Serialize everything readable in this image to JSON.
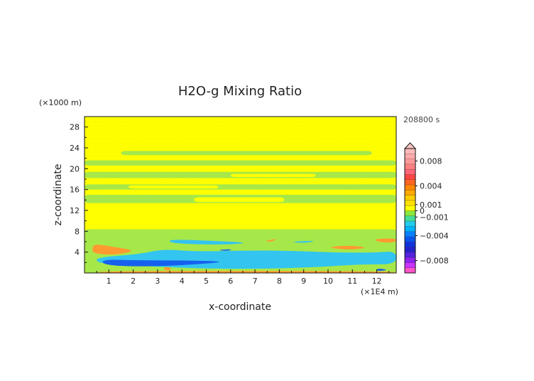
{
  "chart_data": {
    "type": "heatmap",
    "title": "H2O-g Mixing Ratio",
    "xlabel": "x-coordinate",
    "ylabel": "z-coordinate",
    "x_unit": "(×1E4 m)",
    "y_unit": "(×1000 m)",
    "time_label": "208800 s",
    "xlim": [
      0,
      12.8
    ],
    "ylim": [
      0,
      30
    ],
    "x_ticks": [
      1,
      2,
      3,
      4,
      5,
      6,
      7,
      8,
      9,
      10,
      11,
      12
    ],
    "y_ticks": [
      4,
      8,
      12,
      16,
      20,
      24,
      28
    ],
    "colorbar": {
      "range": [
        -0.01,
        0.01
      ],
      "ticks": [
        {
          "value": 0.008,
          "label": "0.008"
        },
        {
          "value": 0.004,
          "label": "0.004"
        },
        {
          "value": 0.001,
          "label": "0.001"
        },
        {
          "value": 0,
          "label": "0"
        },
        {
          "value": -0.001,
          "label": "−0.001"
        },
        {
          "value": -0.004,
          "label": "−0.004"
        },
        {
          "value": -0.008,
          "label": "−0.008"
        }
      ],
      "colors": [
        "#ff55c8",
        "#cc33ff",
        "#8f22ee",
        "#5522dd",
        "#2222cc",
        "#1133dd",
        "#0a55ee",
        "#0a80ff",
        "#00b4ff",
        "#22ccee",
        "#44dd99",
        "#88e840",
        "#ffff00",
        "#ffe000",
        "#ffcc00",
        "#ffaa00",
        "#ff8800",
        "#ff6622",
        "#ff4444",
        "#ff6677",
        "#ff8080",
        "#ff9999",
        "#ffaaaa",
        "#ffbbbb"
      ]
    },
    "fields": [
      {
        "level": "green",
        "x": [
          0,
          12.8
        ],
        "y": [
          0,
          8.4
        ]
      },
      {
        "level": "yellow",
        "x": [
          0,
          12.8
        ],
        "y": [
          8.4,
          13.3
        ]
      },
      {
        "level": "green",
        "x": [
          0,
          12.8
        ],
        "y": [
          13.4,
          15.0
        ]
      },
      {
        "level": "green",
        "x": [
          0,
          12.8
        ],
        "y": [
          16.0,
          17.0
        ]
      },
      {
        "level": "green",
        "x": [
          0,
          12.8
        ],
        "y": [
          18.2,
          19.4
        ]
      },
      {
        "level": "green",
        "x": [
          0,
          12.8
        ],
        "y": [
          20.6,
          21.6
        ]
      },
      {
        "level": "green",
        "x": [
          1.5,
          11.8
        ],
        "y": [
          22.6,
          23.4
        ]
      },
      {
        "level": "yellow",
        "x": [
          1.8,
          5.5
        ],
        "y": [
          16.2,
          16.8
        ]
      },
      {
        "level": "yellow",
        "x": [
          6.0,
          9.5
        ],
        "y": [
          18.4,
          19.0
        ]
      },
      {
        "level": "yellow",
        "x": [
          4.5,
          8.2
        ],
        "y": [
          13.6,
          14.5
        ]
      }
    ],
    "blobs": [
      {
        "level": "orange",
        "points": [
          [
            0.4,
            5.6
          ],
          [
            1.2,
            5.0
          ],
          [
            2.1,
            4.3
          ],
          [
            1.4,
            3.5
          ],
          [
            0.4,
            3.6
          ],
          [
            0.3,
            4.6
          ]
        ]
      },
      {
        "level": "orange",
        "points": [
          [
            7.4,
            6.2
          ],
          [
            8.0,
            6.6
          ],
          [
            7.6,
            5.9
          ]
        ]
      },
      {
        "level": "orange",
        "points": [
          [
            9.9,
            4.9
          ],
          [
            10.8,
            5.3
          ],
          [
            11.7,
            4.9
          ],
          [
            10.9,
            4.4
          ]
        ]
      },
      {
        "level": "orange",
        "points": [
          [
            11.8,
            6.5
          ],
          [
            12.8,
            6.7
          ],
          [
            12.8,
            5.9
          ],
          [
            12.2,
            5.8
          ]
        ]
      },
      {
        "level": "orange",
        "points": [
          [
            0.5,
            0.3
          ],
          [
            6.0,
            0.4
          ],
          [
            12.8,
            0.3
          ],
          [
            12.8,
            0.0
          ],
          [
            0.5,
            0.0
          ]
        ]
      },
      {
        "level": "orange",
        "points": [
          [
            3.2,
            0.6
          ],
          [
            3.4,
            1.8
          ],
          [
            3.6,
            0.4
          ]
        ]
      },
      {
        "level": "cyan",
        "points": [
          [
            0.5,
            3.0
          ],
          [
            2.3,
            3.6
          ],
          [
            3.2,
            4.6
          ],
          [
            4.6,
            4.1
          ],
          [
            6.5,
            4.3
          ],
          [
            8.3,
            4.3
          ],
          [
            10.2,
            3.9
          ],
          [
            12.0,
            3.9
          ],
          [
            12.8,
            4.2
          ],
          [
            12.8,
            1.6
          ],
          [
            11.5,
            1.7
          ],
          [
            9.5,
            1.1
          ],
          [
            7.5,
            0.8
          ],
          [
            5.0,
            0.8
          ],
          [
            3.0,
            1.2
          ],
          [
            1.2,
            1.7
          ],
          [
            0.5,
            2.0
          ]
        ]
      },
      {
        "level": "cyan",
        "points": [
          [
            3.4,
            6.5
          ],
          [
            5.5,
            6.1
          ],
          [
            6.8,
            5.8
          ],
          [
            5.8,
            5.4
          ],
          [
            3.6,
            5.6
          ]
        ]
      },
      {
        "level": "cyan",
        "points": [
          [
            8.4,
            6.0
          ],
          [
            9.6,
            6.2
          ],
          [
            9.0,
            5.7
          ]
        ]
      },
      {
        "level": "blue",
        "points": [
          [
            0.7,
            2.6
          ],
          [
            2.3,
            2.4
          ],
          [
            4.0,
            2.4
          ],
          [
            6.0,
            2.2
          ],
          [
            4.2,
            1.5
          ],
          [
            2.3,
            1.2
          ],
          [
            0.8,
            1.5
          ]
        ]
      },
      {
        "level": "blue",
        "points": [
          [
            5.4,
            4.4
          ],
          [
            6.1,
            4.6
          ],
          [
            5.9,
            4.2
          ]
        ]
      },
      {
        "level": "blue",
        "points": [
          [
            12.0,
            0.9
          ],
          [
            12.5,
            0.6
          ],
          [
            12.0,
            0.3
          ]
        ]
      }
    ],
    "grid": false,
    "colorbar_position": "right"
  }
}
